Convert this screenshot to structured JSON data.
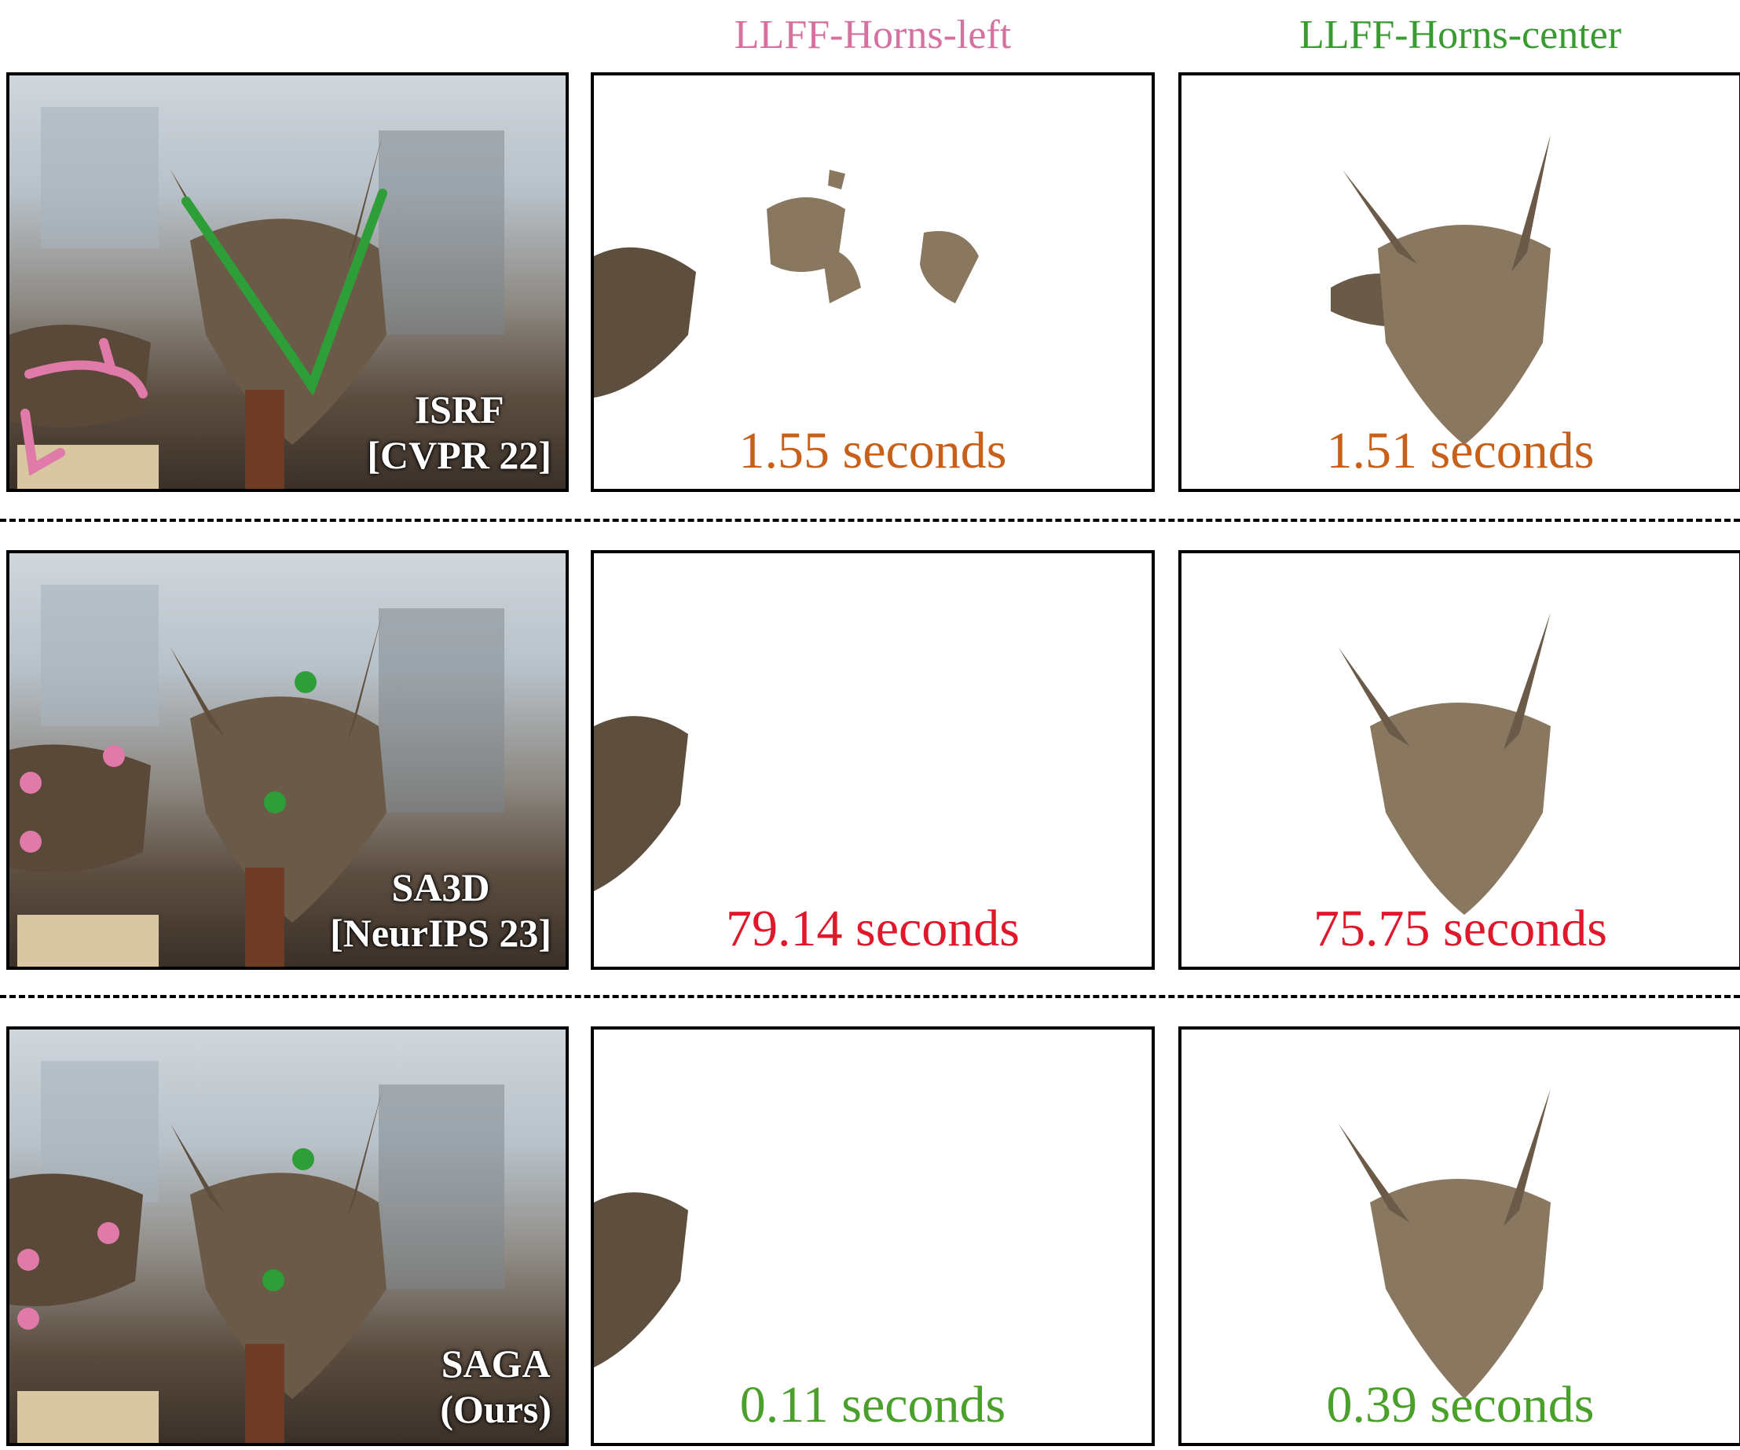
{
  "columns": {
    "left": {
      "label": "LLFF-Horns-left",
      "color": "#d4719f"
    },
    "center": {
      "label": "LLFF-Horns-center",
      "color": "#3a9a32"
    }
  },
  "colors": {
    "pink_prompt": "#e07aa8",
    "green_prompt": "#2e9e38",
    "time_orange": "#c8601a",
    "time_red": "#e0182c",
    "time_green": "#4aa02a",
    "skull": "#6b5a47"
  },
  "rows": [
    {
      "method_line1": "ISRF",
      "method_line2": "[CVPR 22]",
      "prompt_type": "scribbles",
      "left_time": "1.55 seconds",
      "center_time": "1.51 seconds",
      "time_color": "#c8601a"
    },
    {
      "method_line1": "SA3D",
      "method_line2": "[NeurIPS 23]",
      "prompt_type": "points",
      "left_time": "79.14 seconds",
      "center_time": "75.75 seconds",
      "time_color": "#e0182c"
    },
    {
      "method_line1": "SAGA",
      "method_line2": "(Ours)",
      "prompt_type": "points",
      "left_time": "0.11 seconds",
      "center_time": "0.39 seconds",
      "time_color": "#4aa02a"
    }
  ]
}
